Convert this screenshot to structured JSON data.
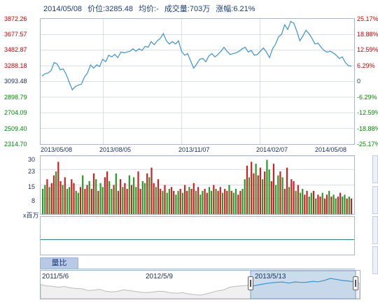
{
  "header": {
    "date": "2014/05/08",
    "price": "价位:3285.48",
    "avg": "均价:-",
    "volume": "成交量:703万",
    "change": "涨幅:6.21%"
  },
  "price_axis": {
    "left": [
      "3872.26",
      "3677.57",
      "3482.87",
      "3288.18",
      "3093.48",
      "2898.79",
      "2704.09",
      "2509.40",
      "2314.70"
    ],
    "right": [
      "25.17%",
      "18.88%",
      "12.59%",
      "6.29%",
      "0",
      "-6.29%",
      "-12.59%",
      "-18.88%",
      "-25.17%"
    ]
  },
  "x_axis": [
    "2013/05/08",
    "2013/08/05",
    "2013/11/07",
    "2014/02/07",
    "2014/05/08"
  ],
  "volume_axis": {
    "ticks": [
      "30",
      "23",
      "15",
      "8"
    ],
    "unit": "x百万"
  },
  "tab": {
    "label": "量比"
  },
  "navigator": {
    "labels": [
      "2011/5/6",
      "2012/5/9",
      "2013/5/13"
    ]
  },
  "colors": {
    "line": "#3b93d3",
    "up_label": "#cc0000",
    "down_label": "#008800",
    "vol_up": "#cc2222",
    "vol_down": "#2a9a2a",
    "grid": "#d8dde6"
  },
  "chart_data": {
    "type": "line",
    "ylim": [
      2314.7,
      3872.26
    ],
    "x_range": [
      "2013/05/08",
      "2014/05/08"
    ],
    "values": [
      3160,
      3190,
      3200,
      3230,
      3330,
      3310,
      3240,
      3250,
      3180,
      3080,
      2990,
      3030,
      3050,
      3060,
      3150,
      3200,
      3300,
      3260,
      3300,
      3280,
      3370,
      3340,
      3420,
      3400,
      3430,
      3390,
      3460,
      3450,
      3460,
      3470,
      3500,
      3470,
      3500,
      3480,
      3530,
      3520,
      3590,
      3550,
      3600,
      3630,
      3690,
      3600,
      3560,
      3590,
      3560,
      3600,
      3470,
      3420,
      3440,
      3350,
      3260,
      3310,
      3370,
      3380,
      3340,
      3410,
      3440,
      3400,
      3430,
      3470,
      3520,
      3470,
      3430,
      3440,
      3450,
      3470,
      3500,
      3520,
      3460,
      3480,
      3420,
      3430,
      3470,
      3510,
      3460,
      3390,
      3500,
      3560,
      3650,
      3680,
      3800,
      3740,
      3840,
      3820,
      3720,
      3600,
      3660,
      3730,
      3690,
      3630,
      3560,
      3570,
      3520,
      3480,
      3460,
      3470,
      3450,
      3420,
      3380,
      3400,
      3330,
      3290,
      3285
    ],
    "volume": {
      "ylim": [
        0,
        30
      ],
      "ticks": [
        8,
        15,
        23,
        30
      ],
      "values": [
        13,
        15,
        18,
        14,
        16,
        20,
        22,
        27,
        17,
        15,
        19,
        13,
        14,
        18,
        16,
        12,
        11,
        14,
        20,
        13,
        15,
        17,
        13,
        21,
        18,
        12,
        16,
        14,
        19,
        22,
        17,
        13,
        15,
        21,
        12,
        18,
        14,
        16,
        13,
        20,
        15,
        19,
        14,
        22,
        13,
        17,
        16,
        21,
        19,
        24,
        16,
        14,
        18,
        13,
        12,
        15,
        11,
        13,
        14,
        12,
        10,
        12,
        13,
        11,
        15,
        12,
        14,
        13,
        16,
        12,
        14,
        10,
        12,
        13,
        11,
        14,
        12,
        15,
        13,
        12,
        14,
        11,
        13,
        12,
        15,
        12,
        11,
        13,
        10,
        12,
        13,
        18,
        25,
        19,
        27,
        21,
        26,
        20,
        24,
        18,
        22,
        28,
        23,
        17,
        26,
        15,
        20,
        22,
        19,
        13,
        24,
        14,
        18,
        17,
        12,
        15,
        11,
        13,
        10,
        12,
        9,
        11,
        12,
        8,
        10,
        9,
        11,
        8,
        10,
        12,
        9,
        10,
        8,
        9,
        11,
        9,
        10,
        8,
        9,
        8
      ]
    },
    "navigator_values": [
      3400,
      3300,
      3260,
      3200,
      3250,
      3150,
      3100,
      3080,
      2950,
      2980,
      3040,
      2900,
      2850,
      2890,
      3000,
      2950,
      2880,
      2820,
      2800,
      2840,
      2900,
      2870,
      2780,
      2750,
      2790,
      2700,
      2650,
      2600,
      2700,
      2820,
      2930,
      3000,
      3200,
      3260,
      3300,
      3330,
      3290,
      3380,
      3460,
      3520,
      3560,
      3580,
      3500,
      3590,
      3550,
      3560,
      3630,
      3600,
      3700,
      3850,
      3780,
      3700,
      3660,
      3600,
      3480
    ]
  }
}
